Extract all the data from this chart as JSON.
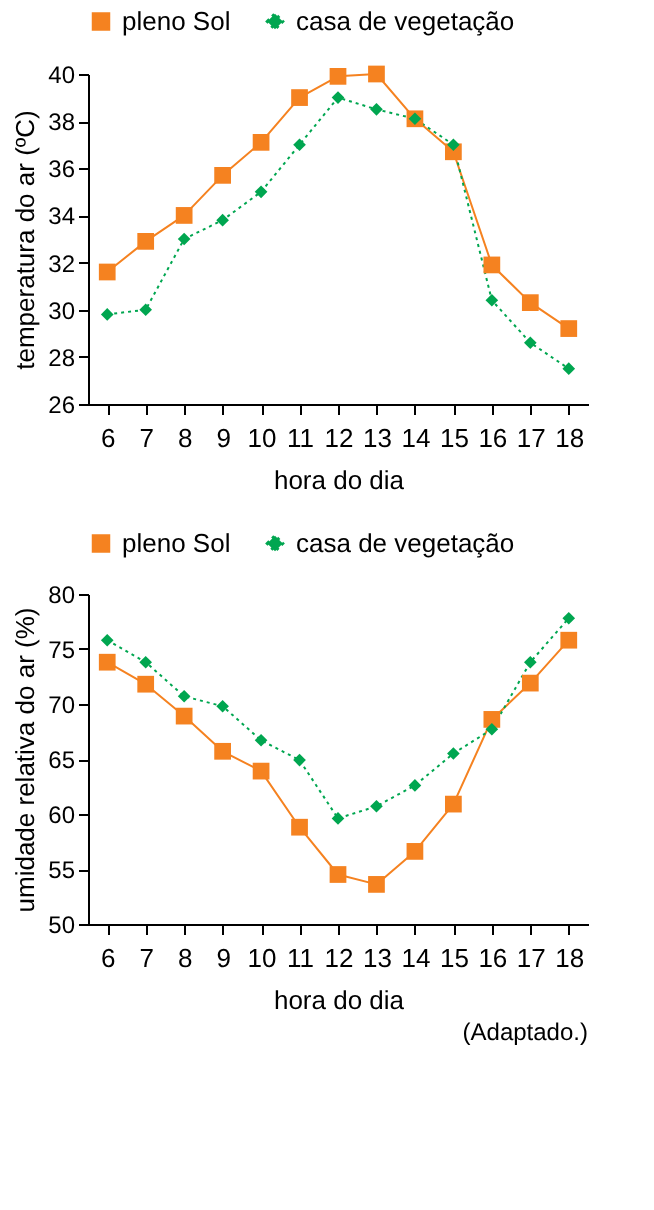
{
  "chart_data": [
    {
      "type": "line",
      "xlabel": "hora do dia",
      "ylabel": "temperatura do ar (ºC)",
      "categories": [
        "6",
        "7",
        "8",
        "9",
        "10",
        "11",
        "12",
        "13",
        "14",
        "15",
        "16",
        "17",
        "18"
      ],
      "series": [
        {
          "name": "pleno Sol",
          "color": "#f58220",
          "marker": "square",
          "line_style": "solid",
          "values": [
            31.6,
            32.9,
            34.0,
            35.7,
            37.1,
            39.0,
            39.9,
            40.0,
            38.1,
            36.7,
            31.9,
            30.3,
            29.2
          ]
        },
        {
          "name": "casa de vegetação",
          "color": "#00a650",
          "marker": "diamond",
          "line_style": "dotted",
          "values": [
            29.8,
            30.0,
            33.0,
            33.8,
            35.0,
            37.0,
            39.0,
            38.5,
            38.1,
            37.0,
            30.4,
            28.6,
            27.5
          ]
        }
      ],
      "ylim": [
        26,
        40
      ],
      "yticks": [
        26,
        28,
        30,
        32,
        34,
        36,
        38,
        40
      ],
      "grid": false,
      "legend": "top"
    },
    {
      "type": "line",
      "xlabel": "hora do dia",
      "ylabel": "umidade relativa do ar (%)",
      "categories": [
        "6",
        "7",
        "8",
        "9",
        "10",
        "11",
        "12",
        "13",
        "14",
        "15",
        "16",
        "17",
        "18"
      ],
      "series": [
        {
          "name": "pleno Sol",
          "color": "#f58220",
          "marker": "square",
          "line_style": "solid",
          "values": [
            73.8,
            71.8,
            68.9,
            65.7,
            63.9,
            58.8,
            54.5,
            53.6,
            56.6,
            60.9,
            68.6,
            71.9,
            75.8
          ]
        },
        {
          "name": "casa de vegetação",
          "color": "#00a650",
          "marker": "diamond",
          "line_style": "dotted",
          "values": [
            75.8,
            73.8,
            70.7,
            69.8,
            66.7,
            64.9,
            59.6,
            60.7,
            62.6,
            65.5,
            67.7,
            73.8,
            77.8
          ]
        }
      ],
      "ylim": [
        50,
        80
      ],
      "yticks": [
        50,
        55,
        60,
        65,
        70,
        75,
        80
      ],
      "grid": false,
      "legend": "top",
      "annotations": [
        "(Adaptado.)"
      ]
    }
  ]
}
